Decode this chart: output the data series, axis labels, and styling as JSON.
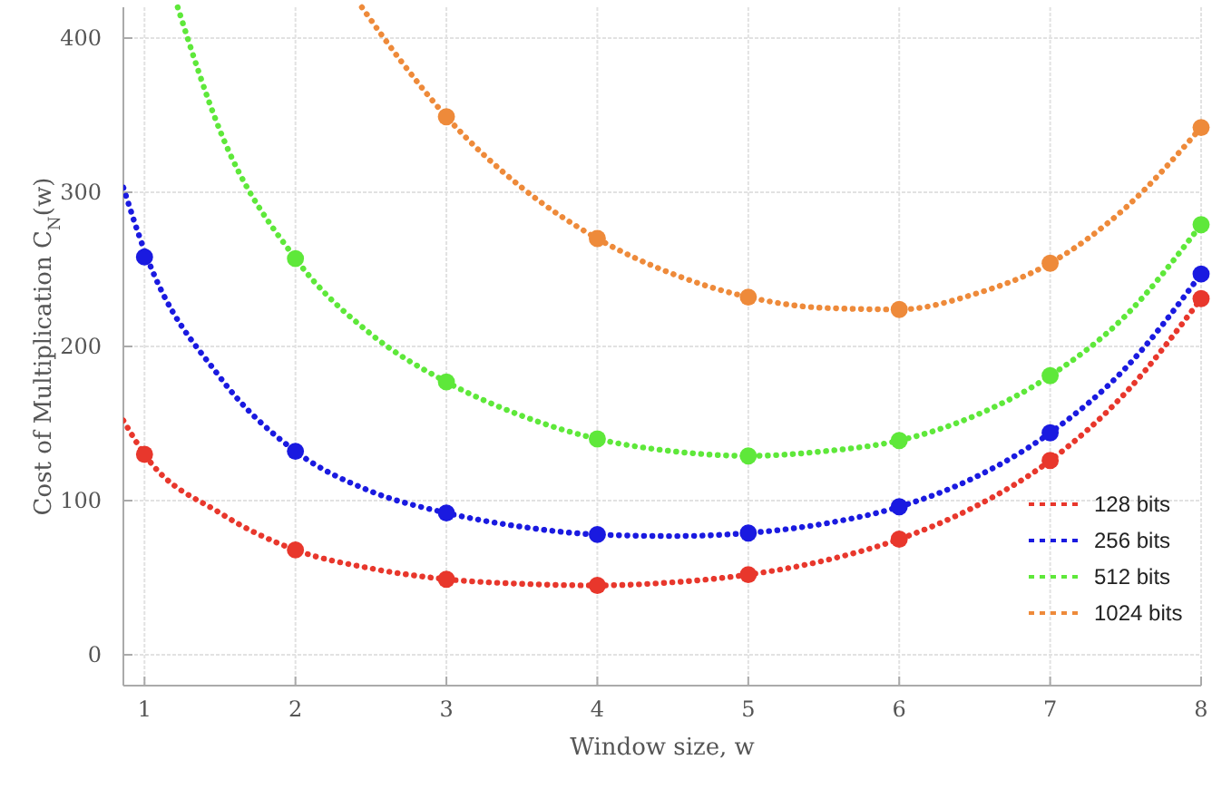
{
  "chart_data": {
    "type": "line",
    "xlabel": "Window size, w",
    "ylabel": "Cost of Multiplication C$_{N}$(w)",
    "xlim": [
      0.86,
      8
    ],
    "ylim": [
      -20,
      420
    ],
    "xticks": [
      1,
      2,
      3,
      4,
      5,
      6,
      7,
      8
    ],
    "yticks": [
      0,
      100,
      200,
      300,
      400
    ],
    "grid": true,
    "legend": "bottom right",
    "series": [
      {
        "name": "128 bits",
        "color": "#e8372c",
        "marker": "none",
        "line_style": "dotted",
        "x": [
          0.86,
          1,
          1.5,
          2,
          2.5,
          3,
          3.5,
          4,
          4.5,
          5,
          5.5,
          6,
          6.5,
          7,
          7.5,
          8
        ],
        "values": [
          152,
          130,
          92,
          68,
          56,
          49,
          46,
          45,
          47,
          52,
          61,
          75,
          96,
          126,
          170,
          231
        ]
      },
      {
        "name": "256 bits",
        "color": "#1a1ae0",
        "marker": "none",
        "line_style": "dotted",
        "x": [
          0.86,
          1,
          1.5,
          2,
          2.5,
          3,
          3.5,
          4,
          4.5,
          5,
          5.5,
          6,
          6.5,
          7,
          7.5,
          8
        ],
        "values": [
          303,
          262,
          180,
          132,
          106,
          92,
          83,
          78,
          77,
          79,
          85,
          96,
          115,
          144,
          186,
          247
        ]
      },
      {
        "name": "512 bits",
        "color": "#5ee83a",
        "marker": "none",
        "line_style": "dotted",
        "x": [
          1.22,
          1.5,
          2,
          2.5,
          3,
          3.5,
          4,
          4.5,
          5,
          5.5,
          6,
          6.5,
          7,
          7.5,
          8
        ],
        "values": [
          420,
          340,
          257,
          208,
          177,
          155,
          140,
          132,
          129,
          132,
          139,
          155,
          181,
          220,
          279
        ]
      },
      {
        "name": "1024 bits",
        "color": "#ee8a3a",
        "marker": "none",
        "line_style": "dotted",
        "x": [
          2.44,
          2.7,
          3,
          3.5,
          4,
          4.5,
          5,
          5.5,
          6,
          6.5,
          7,
          7.5,
          8
        ],
        "values": [
          420,
          385,
          349,
          303,
          270,
          247,
          232,
          225,
          224,
          234,
          254,
          290,
          342
        ]
      },
      {
        "type": "scatter",
        "color": "#e8372c",
        "marker": "circle",
        "x": [
          1,
          2,
          3,
          4,
          5,
          6,
          7,
          8
        ],
        "values": [
          130,
          68,
          49,
          45,
          52,
          75,
          126,
          231
        ]
      },
      {
        "type": "scatter",
        "color": "#1a1ae0",
        "marker": "circle",
        "x": [
          1,
          2,
          3,
          4,
          5,
          6,
          7,
          8
        ],
        "values": [
          258,
          132,
          92,
          78,
          79,
          96,
          144,
          247
        ]
      },
      {
        "type": "scatter",
        "color": "#5ee83a",
        "marker": "circle",
        "x": [
          2,
          3,
          4,
          5,
          6,
          7,
          8
        ],
        "values": [
          257,
          177,
          140,
          129,
          139,
          181,
          279
        ]
      },
      {
        "type": "scatter",
        "color": "#ee8a3a",
        "marker": "circle",
        "x": [
          3,
          4,
          5,
          6,
          7,
          8
        ],
        "values": [
          349,
          270,
          232,
          224,
          254,
          342
        ]
      }
    ]
  }
}
